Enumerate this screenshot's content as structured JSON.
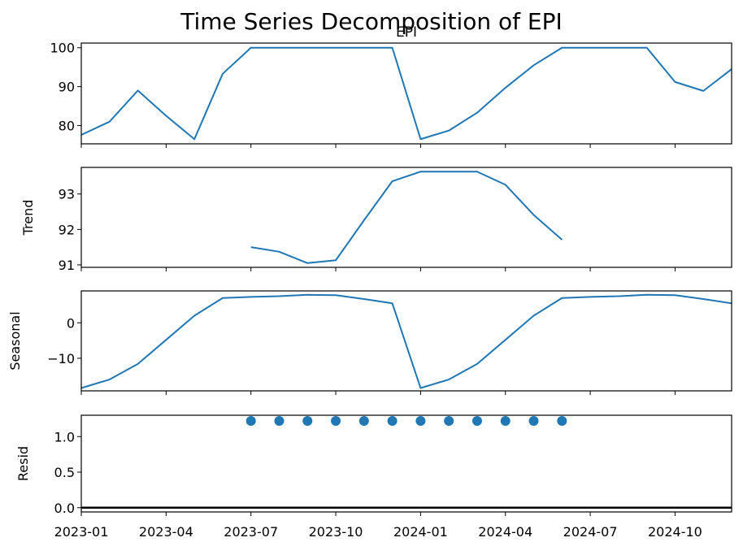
{
  "chart_data": {
    "type": "line",
    "title": "Time Series Decomposition of EPI",
    "colors": {
      "series": "#1f77b4",
      "baseline": "#000000"
    },
    "x_tick_labels": [
      "2023-01",
      "2023-04",
      "2023-07",
      "2023-10",
      "2024-01",
      "2024-04",
      "2024-07",
      "2024-10"
    ],
    "panels": [
      {
        "id": "observed",
        "type": "line",
        "title": "EPI",
        "ylabel": "",
        "ylim": [
          75.3,
          101.2
        ],
        "yticks": [
          80,
          90,
          100
        ],
        "x": [
          "2023-01",
          "2023-02",
          "2023-03",
          "2023-04",
          "2023-05",
          "2023-06",
          "2023-07",
          "2023-08",
          "2023-09",
          "2023-10",
          "2023-11",
          "2023-12",
          "2024-01",
          "2024-02",
          "2024-03",
          "2024-04",
          "2024-05",
          "2024-06",
          "2024-07",
          "2024-08",
          "2024-09",
          "2024-10",
          "2024-11",
          "2024-12"
        ],
        "values": [
          77.6,
          81.0,
          89.0,
          82.5,
          76.5,
          93.3,
          100,
          100,
          100,
          100,
          100,
          100,
          76.5,
          78.7,
          83.3,
          89.7,
          95.5,
          100,
          100,
          100,
          100,
          91.2,
          88.9,
          94.5
        ]
      },
      {
        "id": "trend",
        "type": "line",
        "title": "",
        "ylabel": "Trend",
        "ylim": [
          90.93,
          93.75
        ],
        "yticks": [
          91,
          92,
          93
        ],
        "x": [
          "2023-07",
          "2023-08",
          "2023-09",
          "2023-10",
          "2023-11",
          "2023-12",
          "2024-01",
          "2024-02",
          "2024-03",
          "2024-04",
          "2024-05",
          "2024-06"
        ],
        "values": [
          91.5,
          91.37,
          91.05,
          91.13,
          92.26,
          93.36,
          93.63,
          93.63,
          93.63,
          93.26,
          92.41,
          91.71
        ]
      },
      {
        "id": "seasonal",
        "type": "line",
        "title": "",
        "ylabel": "Seasonal",
        "ylim": [
          -19.2,
          9.0
        ],
        "yticks": [
          0,
          -10
        ],
        "x": [
          "2023-01",
          "2023-02",
          "2023-03",
          "2023-04",
          "2023-05",
          "2023-06",
          "2023-07",
          "2023-08",
          "2023-09",
          "2023-10",
          "2023-11",
          "2023-12",
          "2024-01",
          "2024-02",
          "2024-03",
          "2024-04",
          "2024-05",
          "2024-06",
          "2024-07",
          "2024-08",
          "2024-09",
          "2024-10",
          "2024-11",
          "2024-12"
        ],
        "values": [
          -18.4,
          -16.0,
          -11.6,
          -4.8,
          2.0,
          7.0,
          7.3,
          7.5,
          7.9,
          7.8,
          6.7,
          5.5,
          -18.4,
          -16.0,
          -11.6,
          -4.8,
          2.0,
          7.0,
          7.3,
          7.5,
          7.9,
          7.8,
          6.7,
          5.5
        ]
      },
      {
        "id": "resid",
        "type": "scatter",
        "title": "",
        "ylabel": "Resid",
        "ylim": [
          -0.06,
          1.3
        ],
        "yticks": [
          0.0,
          0.5,
          1.0
        ],
        "ytick_labels": [
          "0.0",
          "0.5",
          "1.0"
        ],
        "baseline": 0,
        "x": [
          "2023-07",
          "2023-08",
          "2023-09",
          "2023-10",
          "2023-11",
          "2023-12",
          "2024-01",
          "2024-02",
          "2024-03",
          "2024-04",
          "2024-05",
          "2024-06"
        ],
        "values": [
          1.22,
          1.22,
          1.22,
          1.22,
          1.22,
          1.22,
          1.22,
          1.22,
          1.22,
          1.22,
          1.22,
          1.22
        ]
      }
    ]
  }
}
